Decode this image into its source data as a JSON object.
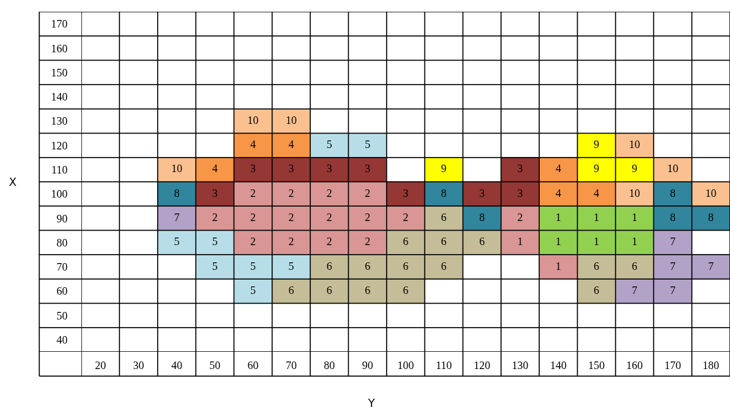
{
  "chart_data": {
    "type": "heatmap",
    "xlabel": "Y",
    "ylabel": "X",
    "data_labels": true,
    "categories": [
      "20",
      "30",
      "40",
      "50",
      "60",
      "70",
      "80",
      "90",
      "100",
      "110",
      "120",
      "130",
      "140",
      "150",
      "160",
      "170",
      "180"
    ],
    "y_categories": [
      "170",
      "160",
      "150",
      "140",
      "130",
      "120",
      "110",
      "100",
      "90",
      "80",
      "70",
      "60",
      "50",
      "40"
    ],
    "cells": [
      [
        null,
        null,
        null,
        null,
        null,
        null,
        null,
        null,
        null,
        null,
        null,
        null,
        null,
        null,
        null,
        null,
        null
      ],
      [
        null,
        null,
        null,
        null,
        null,
        null,
        null,
        null,
        null,
        null,
        null,
        null,
        null,
        null,
        null,
        null,
        null
      ],
      [
        null,
        null,
        null,
        null,
        null,
        null,
        null,
        null,
        null,
        null,
        null,
        null,
        null,
        null,
        null,
        null,
        null
      ],
      [
        null,
        null,
        null,
        null,
        null,
        null,
        null,
        null,
        null,
        null,
        null,
        null,
        null,
        null,
        null,
        null,
        null
      ],
      [
        null,
        null,
        null,
        null,
        10,
        10,
        null,
        null,
        null,
        null,
        null,
        null,
        null,
        null,
        null,
        null,
        null
      ],
      [
        null,
        null,
        null,
        null,
        4,
        4,
        5,
        5,
        null,
        null,
        null,
        null,
        null,
        9,
        10,
        null,
        null
      ],
      [
        null,
        null,
        10,
        4,
        3,
        3,
        3,
        3,
        null,
        9,
        null,
        3,
        4,
        9,
        9,
        10,
        null
      ],
      [
        null,
        null,
        8,
        3,
        2,
        2,
        2,
        2,
        3,
        8,
        3,
        3,
        4,
        4,
        10,
        8,
        10
      ],
      [
        null,
        null,
        7,
        2,
        2,
        2,
        2,
        2,
        2,
        6,
        8,
        2,
        1,
        1,
        1,
        8,
        8
      ],
      [
        null,
        null,
        5,
        5,
        2,
        2,
        2,
        2,
        6,
        6,
        6,
        1,
        1,
        1,
        1,
        7,
        null
      ],
      [
        null,
        null,
        null,
        5,
        5,
        5,
        6,
        6,
        6,
        6,
        null,
        null,
        1,
        6,
        6,
        7,
        7
      ],
      [
        null,
        null,
        null,
        null,
        5,
        6,
        6,
        6,
        6,
        null,
        null,
        null,
        null,
        6,
        7,
        7,
        null
      ],
      [
        null,
        null,
        null,
        null,
        null,
        null,
        null,
        null,
        null,
        null,
        null,
        null,
        null,
        null,
        null,
        null,
        null
      ],
      [
        null,
        null,
        null,
        null,
        null,
        null,
        null,
        null,
        null,
        null,
        null,
        null,
        null,
        null,
        null,
        null,
        null
      ]
    ],
    "colors": [
      [
        null,
        null,
        null,
        null,
        null,
        null,
        null,
        null,
        null,
        null,
        null,
        null,
        null,
        null,
        null,
        null,
        null
      ],
      [
        null,
        null,
        null,
        null,
        null,
        null,
        null,
        null,
        null,
        null,
        null,
        null,
        null,
        null,
        null,
        null,
        null
      ],
      [
        null,
        null,
        null,
        null,
        null,
        null,
        null,
        null,
        null,
        null,
        null,
        null,
        null,
        null,
        null,
        null,
        null
      ],
      [
        null,
        null,
        null,
        null,
        null,
        null,
        null,
        null,
        null,
        null,
        null,
        null,
        null,
        null,
        null,
        null,
        null
      ],
      [
        null,
        null,
        null,
        null,
        "#fac090",
        "#fac090",
        null,
        null,
        null,
        null,
        null,
        null,
        null,
        null,
        null,
        null,
        null
      ],
      [
        null,
        null,
        null,
        null,
        "#f79646",
        "#f79646",
        "#b7dee8",
        "#b7dee8",
        null,
        null,
        null,
        null,
        null,
        "#ffff00",
        "#fac090",
        null,
        null
      ],
      [
        null,
        null,
        "#fac090",
        "#f79646",
        "#953735",
        "#953735",
        "#953735",
        "#953735",
        null,
        "#ffff00",
        null,
        "#953735",
        "#f79646",
        "#ffff00",
        "#ffff00",
        "#fac090",
        null
      ],
      [
        null,
        null,
        "#31859c",
        "#953735",
        "#da9694",
        "#da9694",
        "#da9694",
        "#da9694",
        "#953735",
        "#31859c",
        "#953735",
        "#953735",
        "#f79646",
        "#f79646",
        "#fac090",
        "#31859c",
        "#fac090"
      ],
      [
        null,
        null,
        "#b3a2c7",
        "#da9694",
        "#da9694",
        "#da9694",
        "#da9694",
        "#da9694",
        "#da9694",
        "#c4bd97",
        "#31859c",
        "#da9694",
        "#92d050",
        "#92d050",
        "#92d050",
        "#31859c",
        "#31859c"
      ],
      [
        null,
        null,
        "#b7dee8",
        "#b7dee8",
        "#da9694",
        "#da9694",
        "#da9694",
        "#da9694",
        "#c4bd97",
        "#c4bd97",
        "#c4bd97",
        "#da9694",
        "#92d050",
        "#92d050",
        "#92d050",
        "#b3a2c7",
        null
      ],
      [
        null,
        null,
        null,
        "#b7dee8",
        "#b7dee8",
        "#b7dee8",
        "#c4bd97",
        "#c4bd97",
        "#c4bd97",
        "#c4bd97",
        null,
        null,
        "#da9694",
        "#c4bd97",
        "#c4bd97",
        "#b3a2c7",
        "#b3a2c7"
      ],
      [
        null,
        null,
        null,
        null,
        "#b7dee8",
        "#c4bd97",
        "#c4bd97",
        "#c4bd97",
        "#c4bd97",
        null,
        null,
        null,
        null,
        "#c4bd97",
        "#b3a2c7",
        "#b3a2c7",
        null
      ],
      [
        null,
        null,
        null,
        null,
        null,
        null,
        null,
        null,
        null,
        null,
        null,
        null,
        null,
        null,
        null,
        null,
        null
      ],
      [
        null,
        null,
        null,
        null,
        null,
        null,
        null,
        null,
        null,
        null,
        null,
        null,
        null,
        null,
        null,
        null,
        null
      ]
    ]
  }
}
